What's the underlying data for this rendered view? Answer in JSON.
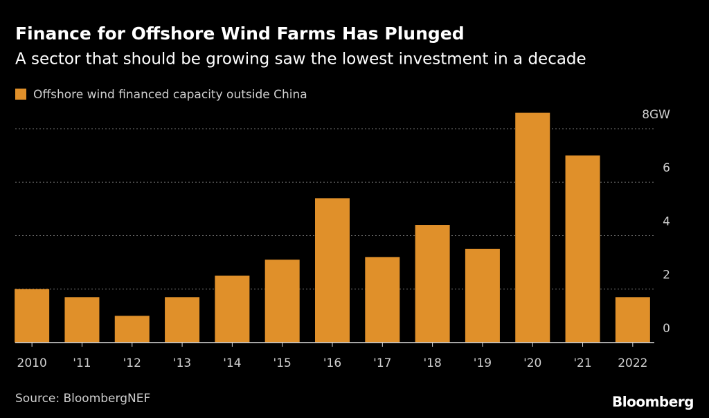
{
  "chart_data": {
    "type": "bar",
    "title": "Finance for Offshore Wind Farms Has Plunged",
    "subtitle": "A sector that should be growing saw the lowest investment in a decade",
    "source": "Source: BloombergNEF",
    "brand": "Bloomberg",
    "series": [
      {
        "name": "Offshore wind financed capacity outside China",
        "color": "#e0902a",
        "values": [
          2.0,
          1.7,
          1.0,
          1.7,
          2.5,
          3.1,
          5.4,
          3.2,
          4.4,
          3.5,
          8.6,
          7.0,
          1.7
        ]
      }
    ],
    "categories": [
      "2010",
      "'11",
      "'12",
      "'13",
      "'14",
      "'15",
      "'16",
      "'17",
      "'18",
      "'19",
      "'20",
      "'21",
      "2022"
    ],
    "ylim": [
      0,
      8.62
    ],
    "yticks": [
      0,
      2,
      4,
      6,
      {
        "value": 8,
        "label": "8GW"
      }
    ],
    "grid": true
  }
}
